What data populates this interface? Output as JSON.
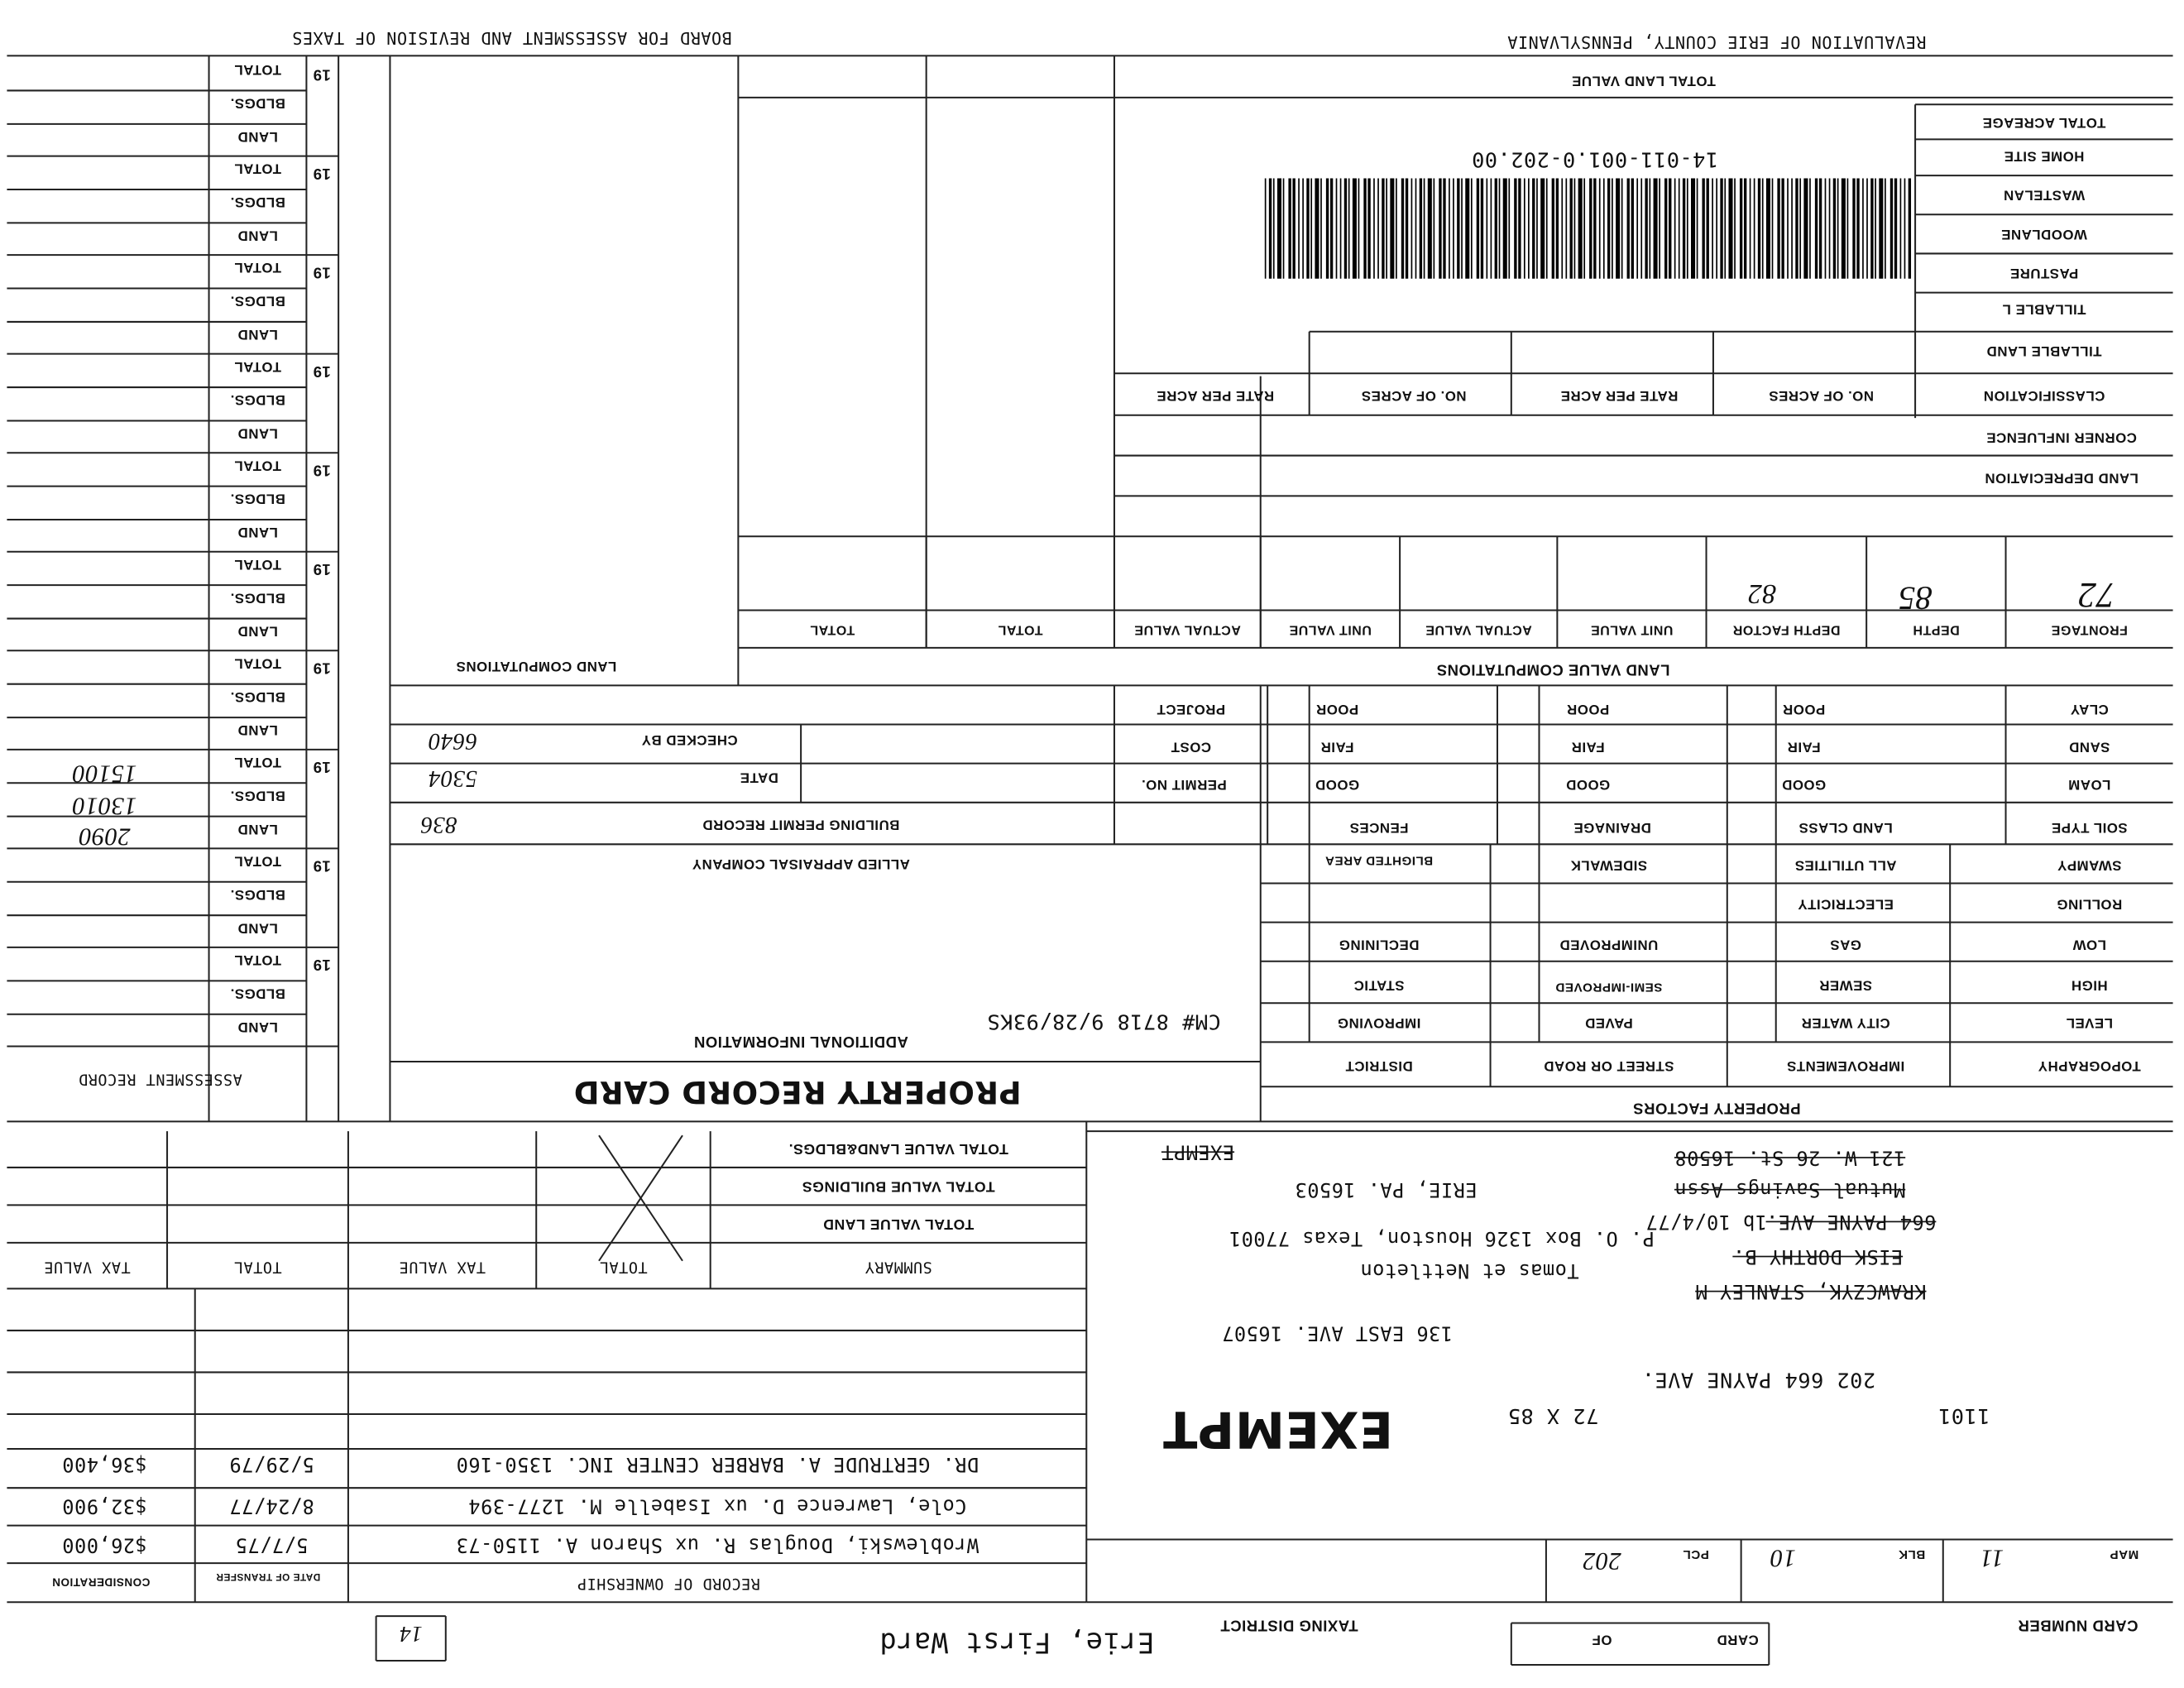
{
  "header": {
    "board": "BOARD FOR ASSESSMENT AND REVISION OF TAXES",
    "county": "REVALUATION OF ERIE COUNTY, PENNSYLVANIA"
  },
  "land": {
    "total_land_value": "TOTAL LAND VALUE",
    "rows": [
      "TOTAL ACREAGE",
      "HOME SITE",
      "WASTELAN",
      "WOODLANE",
      "PASTURE",
      "TILLABLE L",
      "TILLABLE LAND",
      "CLASSIFICATION"
    ],
    "parcel_id": "14-011-001.0-202.00",
    "acre_headers": [
      "NO. OF ACRES",
      "RATE PER ACRE",
      "NO. OF ACRES",
      "RATE PER ACRE"
    ],
    "corner_influence": "CORNER INFLUENCE",
    "land_depreciation": "LAND DEPRECIATION"
  },
  "computations": {
    "title": "LAND VALUE COMPUTATIONS",
    "land_title": "LAND COMPUTATIONS",
    "headers": [
      "FRONTAGE",
      "DEPTH",
      "DEPTH FACTOR",
      "UNIT VALUE",
      "ACTUAL VALUE",
      "UNIT VALUE",
      "ACTUAL VALUE",
      "TOTAL",
      "TOTAL"
    ],
    "entries": [
      "72",
      "85",
      "82"
    ]
  },
  "soil": {
    "types": [
      "CLAY",
      "SAND",
      "LOAM"
    ],
    "headers": [
      "SOIL TYPE",
      "LAND CLASS",
      "DRAINAGE",
      "FENCES"
    ],
    "land_class": [
      "POOR",
      "FAIR",
      "GOOD"
    ],
    "drainage": [
      "POOR",
      "FAIR",
      "GOOD"
    ],
    "fences": [
      "POOR",
      "FAIR",
      "GOOD"
    ]
  },
  "permit": {
    "project": "PROJECT",
    "cost": "COST",
    "permit_no": "PERMIT NO.",
    "checked_by": "CHECKED BY",
    "date": "DATE",
    "title": "BUILDING PERMIT RECORD",
    "company": "ALLIED APPRAISAL COMPANY",
    "entries": [
      "6640",
      "5304",
      "836"
    ]
  },
  "factors": {
    "title": "PROPERTY FACTORS",
    "topography": [
      "SWAMPY",
      "ROLLING",
      "LOW",
      "HIGH",
      "LEVEL",
      "TOPOGRAPHY"
    ],
    "improvements": [
      "ALL UTILITIES",
      "ELECTRICITY",
      "GAS",
      "SEWER",
      "CITY WATER",
      "IMPROVEMENTS"
    ],
    "street": [
      "SIDEWALK",
      "UNIMPROVED",
      "SEMI-IMPROVED",
      "PAVED",
      "STREET OR ROAD"
    ],
    "district": [
      "BLIGHTED AREA",
      "DECLINING",
      "STATIC",
      "IMPROVING",
      "DISTRICT"
    ]
  },
  "additional": {
    "title": "ADDITIONAL INFORMATION",
    "note": "CM# 8718 9/28/93KS"
  },
  "card_title": "PROPERTY RECORD CARD",
  "assessment": {
    "title": "ASSESSMENT RECORD",
    "year_prefix": "19",
    "labels": [
      "TOTAL",
      "BLDGS.",
      "LAND"
    ],
    "values": [
      "15100",
      "13010",
      "2090"
    ]
  },
  "summary": {
    "rows": [
      "TOTAL VALUE LAND&BLDGS.",
      "TOTAL VALUE BUILDINGS",
      "TOTAL VALUE LAND"
    ],
    "headers": [
      "SUMMARY",
      "TOTAL",
      "TAX VALUE",
      "TOTAL",
      "TAX VALUE"
    ]
  },
  "ownership": {
    "title": "RECORD OF OWNERSHIP",
    "date_header": "DATE OF TRANSFER",
    "consideration_header": "CONSIDERATION",
    "rows": [
      [
        "DR. GERTRUDE A. BARBER CENTER INC. 1350-160",
        "5/29/79",
        "$36,400"
      ],
      [
        "Cole, Lawrence D. ux Isabelle M. 1277-394",
        "8/24/77",
        "$32,900"
      ],
      [
        "Wroblewski, Douglas R. ux Sharon A. 1150-73",
        "5/7/75",
        "$26,000"
      ]
    ]
  },
  "owner": {
    "struck": [
      "121 W. 26 St. 16508",
      "EXEMPT",
      "Mutual Savings Assn",
      "664 PAYNE AVE.",
      "EISK DORTHY B.",
      "KRAWCZYK, STANLEY M"
    ],
    "lines": [
      "ERIE, PA. 16503",
      "1b 10/4/77",
      "P. O. Box 1326 Houston, Texas 77001",
      "Tomas et Nettleton",
      "136 EAST AVE. 16507"
    ]
  },
  "parcel": {
    "map_label": "MAP",
    "map": "11",
    "blk_label": "BLK",
    "blk": "10",
    "pcl_label": "PCL",
    "pcl": "202",
    "lot": "1101",
    "dims": "72 X 85",
    "address": "202 664 PAYNE AVE.",
    "exempt": "EXEMPT"
  },
  "footer": {
    "card_number": "CARD NUMBER",
    "card": "CARD",
    "of": "OF",
    "taxing_district": "TAXING DISTRICT",
    "ward": "Erie, First Ward",
    "ward_no": "14"
  }
}
